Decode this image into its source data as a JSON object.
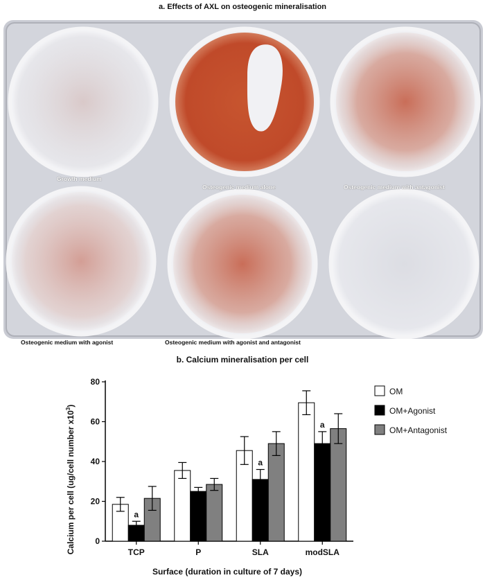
{
  "panel_a": {
    "title": "a. Effects of AXL on osteogenic mineralisation",
    "wells": [
      {
        "label": "Growth medium"
      },
      {
        "label": "Osteogenic medium alone"
      },
      {
        "label": "Osteogenic medium with antagonist"
      },
      {
        "label": "Osteogenic medium with agonist"
      },
      {
        "label": "Osteogenic medium with agonist and antagonist"
      },
      {
        "label": ""
      }
    ]
  },
  "panel_b": {
    "title": "b. Calcium mineralisation per cell"
  },
  "colors": {
    "OM": "#ffffff",
    "OM+Agonist": "#000000",
    "OM+Antagonist": "#808080",
    "stain": "#c0432e"
  },
  "chart_data": {
    "type": "bar",
    "title": "b. Calcium mineralisation per cell",
    "xlabel": "Surface (duration in culture of 7 days)",
    "ylabel": "Calcium per cell (ug/cell number x10",
    "ylabel_sup": "3",
    "ylabel_end": ")",
    "ylim": [
      0,
      80
    ],
    "yticks": [
      0,
      20,
      40,
      60,
      80
    ],
    "categories": [
      "TCP",
      "P",
      "SLA",
      "modSLA"
    ],
    "series": [
      {
        "name": "OM",
        "values": [
          18.5,
          35.5,
          45.5,
          69.5
        ],
        "errors": [
          3.5,
          4,
          7,
          6
        ]
      },
      {
        "name": "OM+Agonist",
        "values": [
          8,
          25,
          31,
          49
        ],
        "errors": [
          2,
          2,
          5,
          6
        ]
      },
      {
        "name": "OM+Antagonist",
        "values": [
          21.5,
          28.5,
          49,
          56.5
        ],
        "errors": [
          6,
          3,
          6,
          7.5
        ]
      }
    ],
    "annotations": [
      {
        "category": "TCP",
        "series": "OM+Agonist",
        "text": "a"
      },
      {
        "category": "SLA",
        "series": "OM+Agonist",
        "text": "a"
      },
      {
        "category": "modSLA",
        "series": "OM+Agonist",
        "text": "a"
      }
    ],
    "legend_position": "right",
    "grid": false
  }
}
